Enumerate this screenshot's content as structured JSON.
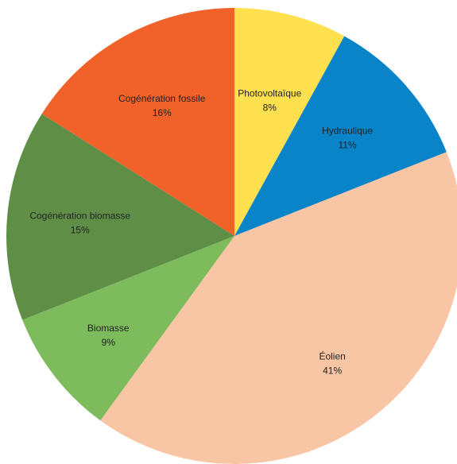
{
  "chart_data": {
    "type": "pie",
    "start_angle_deg": 0,
    "direction": "clockwise",
    "slices": [
      {
        "label": "Photovoltaïque",
        "value": 8,
        "display": "8%",
        "color": "#FFE04F"
      },
      {
        "label": "Hydraulique",
        "value": 11,
        "display": "11%",
        "color": "#0A84C8"
      },
      {
        "label": "Éolien",
        "value": 41,
        "display": "41%",
        "color": "#F9C6A5"
      },
      {
        "label": "Biomasse",
        "value": 9,
        "display": "9%",
        "color": "#7DBB5C"
      },
      {
        "label": "Cogénération biomasse",
        "value": 15,
        "display": "15%",
        "color": "#5F8F46"
      },
      {
        "label": "Cogénération fossile",
        "value": 16,
        "display": "16%",
        "color": "#F0622A"
      }
    ]
  }
}
